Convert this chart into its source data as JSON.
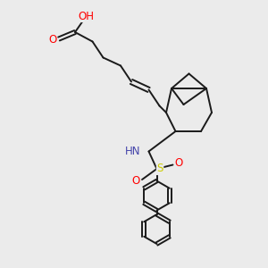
{
  "bg_color": "#ebebeb",
  "bond_color": "#1a1a1a",
  "bond_lw": 1.4,
  "atom_colors": {
    "O": "#ff0000",
    "N": "#4444aa",
    "S": "#cccc00",
    "H": "#808090",
    "C": "#1a1a1a"
  },
  "font_size": 8.5,
  "figsize": [
    3.0,
    3.0
  ],
  "dpi": 100
}
